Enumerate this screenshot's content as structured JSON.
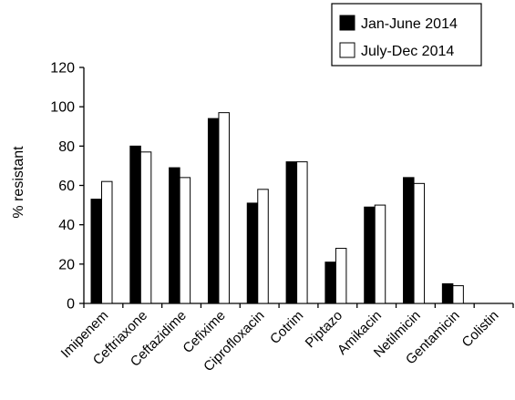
{
  "chart_data": {
    "type": "bar",
    "title": "",
    "xlabel": "",
    "ylabel": "% resistant",
    "ylim": [
      0,
      120
    ],
    "yticks": [
      0,
      20,
      40,
      60,
      80,
      100,
      120
    ],
    "grid": false,
    "legend_position": "top-right",
    "categories": [
      "Imipenem",
      "Ceftriaxone",
      "Ceftazidime",
      "Cefixime",
      "Ciprofloxacin",
      "Cotrim",
      "Piptazo",
      "Amikacin",
      "Netilmicin",
      "Gentamicin",
      "Colistin"
    ],
    "series": [
      {
        "name": "Jan-June 2014",
        "color": "#000000",
        "values": [
          53,
          80,
          69,
          94,
          51,
          72,
          21,
          49,
          64,
          10,
          0
        ]
      },
      {
        "name": "July-Dec 2014",
        "color": "#ffffff",
        "values": [
          62,
          77,
          64,
          97,
          58,
          72,
          28,
          50,
          61,
          9,
          0
        ]
      }
    ]
  }
}
